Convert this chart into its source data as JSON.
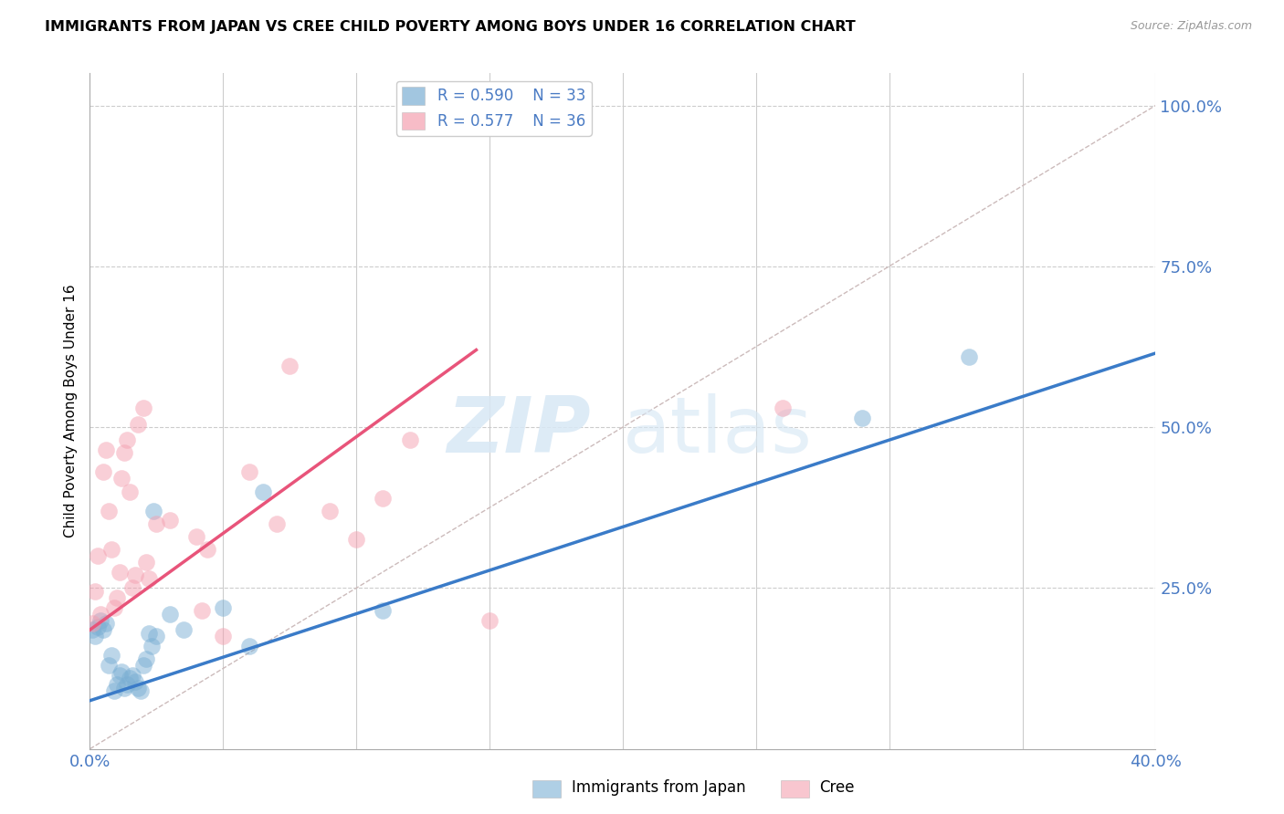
{
  "title": "IMMIGRANTS FROM JAPAN VS CREE CHILD POVERTY AMONG BOYS UNDER 16 CORRELATION CHART",
  "source": "Source: ZipAtlas.com",
  "ylabel": "Child Poverty Among Boys Under 16",
  "xlim": [
    0.0,
    0.4
  ],
  "ylim": [
    0.0,
    1.05
  ],
  "legend_r1": "R = 0.590",
  "legend_n1": "N = 33",
  "legend_r2": "R = 0.577",
  "legend_n2": "N = 36",
  "blue_color": "#7BAFD4",
  "pink_color": "#F4A0B0",
  "axis_color": "#4A7BC4",
  "grid_color": "#CCCCCC",
  "watermark_zip": "ZIP",
  "watermark_atlas": "atlas",
  "blue_scatter_x": [
    0.001,
    0.002,
    0.003,
    0.004,
    0.005,
    0.006,
    0.007,
    0.008,
    0.009,
    0.01,
    0.011,
    0.012,
    0.013,
    0.014,
    0.015,
    0.016,
    0.017,
    0.018,
    0.019,
    0.02,
    0.021,
    0.022,
    0.023,
    0.024,
    0.025,
    0.03,
    0.035,
    0.05,
    0.06,
    0.065,
    0.11,
    0.29,
    0.33
  ],
  "blue_scatter_y": [
    0.185,
    0.175,
    0.19,
    0.2,
    0.185,
    0.195,
    0.13,
    0.145,
    0.09,
    0.1,
    0.115,
    0.12,
    0.095,
    0.1,
    0.11,
    0.115,
    0.105,
    0.095,
    0.09,
    0.13,
    0.14,
    0.18,
    0.16,
    0.37,
    0.175,
    0.21,
    0.185,
    0.22,
    0.16,
    0.4,
    0.215,
    0.515,
    0.61
  ],
  "pink_scatter_x": [
    0.001,
    0.002,
    0.003,
    0.004,
    0.005,
    0.006,
    0.007,
    0.008,
    0.009,
    0.01,
    0.011,
    0.012,
    0.013,
    0.014,
    0.015,
    0.016,
    0.017,
    0.018,
    0.02,
    0.021,
    0.022,
    0.025,
    0.03,
    0.04,
    0.042,
    0.044,
    0.05,
    0.06,
    0.07,
    0.075,
    0.09,
    0.1,
    0.11,
    0.12,
    0.15,
    0.26
  ],
  "pink_scatter_y": [
    0.195,
    0.245,
    0.3,
    0.21,
    0.43,
    0.465,
    0.37,
    0.31,
    0.22,
    0.235,
    0.275,
    0.42,
    0.46,
    0.48,
    0.4,
    0.25,
    0.27,
    0.505,
    0.53,
    0.29,
    0.265,
    0.35,
    0.355,
    0.33,
    0.215,
    0.31,
    0.175,
    0.43,
    0.35,
    0.595,
    0.37,
    0.325,
    0.39,
    0.48,
    0.2,
    0.53
  ],
  "blue_line_x": [
    0.0,
    0.4
  ],
  "blue_line_y": [
    0.075,
    0.615
  ],
  "pink_line_x": [
    0.0,
    0.145
  ],
  "pink_line_y": [
    0.185,
    0.62
  ],
  "diag_line_x": [
    0.0,
    0.4
  ],
  "diag_line_y": [
    0.0,
    1.0
  ]
}
